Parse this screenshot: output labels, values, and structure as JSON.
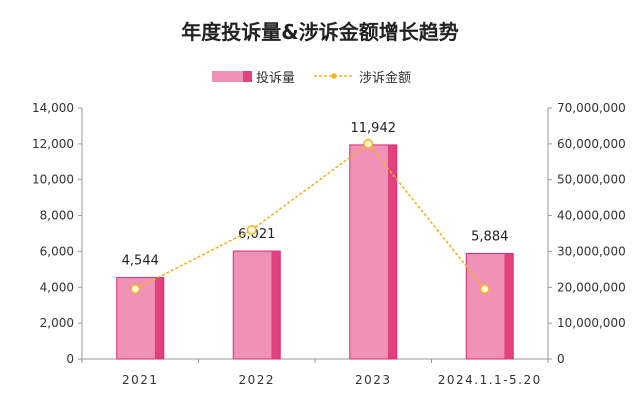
{
  "chart_data": {
    "type": "bar",
    "title": "年度投诉量&涉诉金额增长趋势",
    "categories": [
      "2021",
      "2022",
      "2023",
      "2024.1.1-5.20"
    ],
    "series": [
      {
        "name": "投诉量",
        "type": "bar",
        "axis": "left",
        "values": [
          4544,
          6021,
          11942,
          5884
        ],
        "data_labels": [
          "4,544",
          "6,021",
          "11,942",
          "5,884"
        ]
      },
      {
        "name": "涉诉金额",
        "type": "line",
        "axis": "right",
        "values": [
          19500000,
          36000000,
          60000000,
          19500000
        ]
      }
    ],
    "y_left": {
      "min": 0,
      "max": 14000,
      "step": 2000,
      "tick_labels": [
        "0",
        "2,000",
        "4,000",
        "6,000",
        "8,000",
        "10,000",
        "12,000",
        "14,000"
      ]
    },
    "y_right": {
      "min": 0,
      "max": 70000000,
      "step": 10000000,
      "tick_labels": [
        "0",
        "10,000,000",
        "20,000,000",
        "30,000,000",
        "40,000,000",
        "50,000,000",
        "60,000,000",
        "70,000,000"
      ]
    },
    "legend_position": "top-center",
    "grid": false
  },
  "colors": {
    "bar_front": "#f092b8",
    "bar_side": "#e2417f",
    "bar_outline": "#d92c72",
    "line": "#f0b323",
    "marker_fill": "#fff7d6",
    "axis": "#9a9a9a",
    "tick_text": "#333333"
  }
}
